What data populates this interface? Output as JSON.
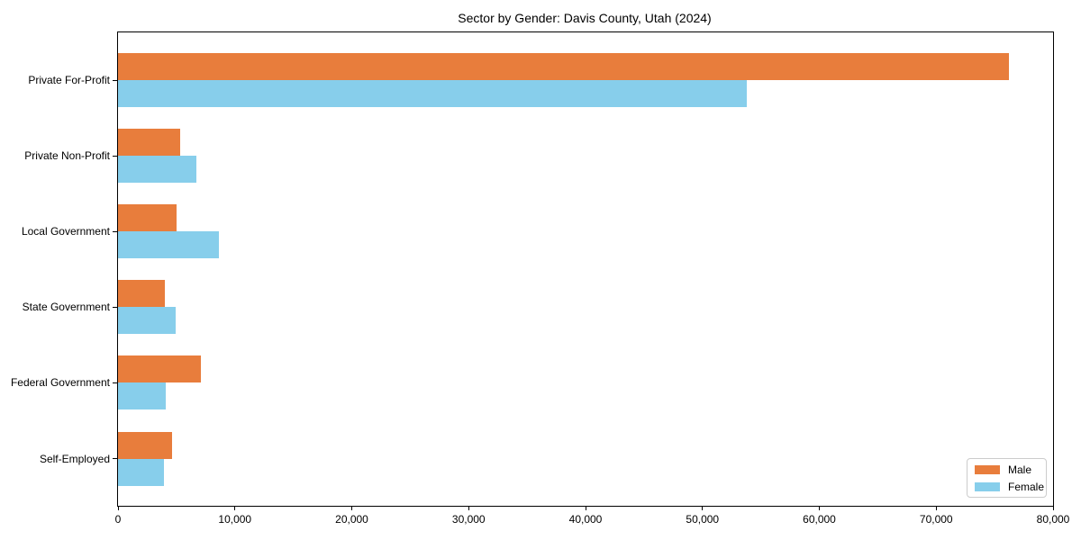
{
  "title": "Sector by Gender: Davis County, Utah (2024)",
  "colors": {
    "male": "#e87d3c",
    "female": "#87ceeb",
    "spine": "#000000",
    "legend_border": "#cccccc",
    "background": "#ffffff"
  },
  "legend": {
    "male_label": "Male",
    "female_label": "Female",
    "position": "lower right"
  },
  "chart_data": {
    "type": "bar",
    "orientation": "horizontal",
    "title": "Sector by Gender: Davis County, Utah (2024)",
    "xlabel": "",
    "ylabel": "",
    "categories": [
      "Private For-Profit",
      "Private Non-Profit",
      "Local Government",
      "State Government",
      "Federal Government",
      "Self-Employed"
    ],
    "series": [
      {
        "name": "Male",
        "color": "#e87d3c",
        "values": [
          76200,
          5300,
          5000,
          4000,
          7100,
          4600
        ]
      },
      {
        "name": "Female",
        "color": "#87ceeb",
        "values": [
          53800,
          6700,
          8600,
          4900,
          4100,
          3900
        ]
      }
    ],
    "xlim": [
      0,
      80000
    ],
    "xticks": [
      0,
      10000,
      20000,
      30000,
      40000,
      50000,
      60000,
      70000,
      80000
    ],
    "xtick_labels": [
      "0",
      "10,000",
      "20,000",
      "30,000",
      "40,000",
      "50,000",
      "60,000",
      "70,000",
      "80,000"
    ],
    "grid": false,
    "legend_position": "lower right"
  }
}
